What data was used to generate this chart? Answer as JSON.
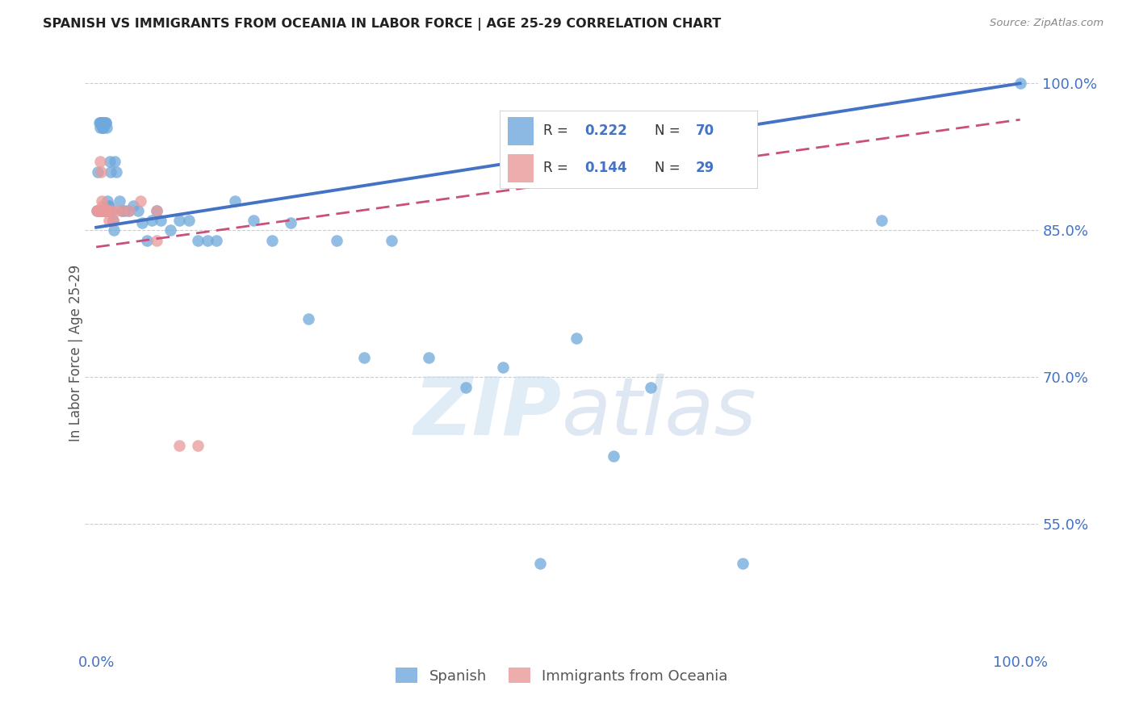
{
  "title": "SPANISH VS IMMIGRANTS FROM OCEANIA IN LABOR FORCE | AGE 25-29 CORRELATION CHART",
  "source": "Source: ZipAtlas.com",
  "ylabel": "In Labor Force | Age 25-29",
  "ytick_positions": [
    0.55,
    0.7,
    0.85,
    1.0
  ],
  "blue_color": "#6fa8dc",
  "pink_color": "#ea9999",
  "line_blue": "#4472c4",
  "line_pink": "#c9507a",
  "tick_color": "#4472c4",
  "legend_r1": "R = 0.222",
  "legend_n1": "N = 70",
  "legend_r2": "R = 0.144",
  "legend_n2": "N = 29",
  "blue_x": [
    0.001,
    0.002,
    0.003,
    0.003,
    0.004,
    0.004,
    0.005,
    0.005,
    0.006,
    0.006,
    0.007,
    0.007,
    0.007,
    0.008,
    0.008,
    0.008,
    0.009,
    0.009,
    0.01,
    0.01,
    0.01,
    0.011,
    0.011,
    0.012,
    0.012,
    0.013,
    0.013,
    0.014,
    0.015,
    0.016,
    0.017,
    0.018,
    0.019,
    0.02,
    0.022,
    0.025,
    0.028,
    0.03,
    0.035,
    0.04,
    0.045,
    0.05,
    0.055,
    0.06,
    0.065,
    0.07,
    0.08,
    0.09,
    0.1,
    0.11,
    0.12,
    0.13,
    0.15,
    0.17,
    0.19,
    0.21,
    0.23,
    0.26,
    0.29,
    0.32,
    0.36,
    0.4,
    0.44,
    0.48,
    0.52,
    0.56,
    0.6,
    0.7,
    0.85,
    1.0
  ],
  "blue_y": [
    0.87,
    0.91,
    0.87,
    0.96,
    0.955,
    0.96,
    0.96,
    0.96,
    0.96,
    0.96,
    0.955,
    0.955,
    0.96,
    0.955,
    0.96,
    0.87,
    0.96,
    0.87,
    0.96,
    0.96,
    0.87,
    0.955,
    0.87,
    0.88,
    0.87,
    0.875,
    0.87,
    0.875,
    0.92,
    0.91,
    0.87,
    0.86,
    0.85,
    0.92,
    0.91,
    0.88,
    0.87,
    0.87,
    0.87,
    0.875,
    0.87,
    0.858,
    0.84,
    0.86,
    0.87,
    0.86,
    0.85,
    0.86,
    0.86,
    0.84,
    0.84,
    0.84,
    0.88,
    0.86,
    0.84,
    0.858,
    0.76,
    0.84,
    0.72,
    0.84,
    0.72,
    0.69,
    0.71,
    0.51,
    0.74,
    0.62,
    0.69,
    0.51,
    0.86,
    1.0
  ],
  "pink_x": [
    0.001,
    0.002,
    0.003,
    0.003,
    0.004,
    0.004,
    0.005,
    0.005,
    0.006,
    0.006,
    0.007,
    0.007,
    0.008,
    0.008,
    0.009,
    0.01,
    0.011,
    0.012,
    0.014,
    0.016,
    0.018,
    0.022,
    0.028,
    0.036,
    0.048,
    0.065,
    0.065,
    0.09,
    0.11
  ],
  "pink_y": [
    0.87,
    0.87,
    0.87,
    0.87,
    0.87,
    0.92,
    0.87,
    0.91,
    0.88,
    0.87,
    0.87,
    0.875,
    0.87,
    0.87,
    0.87,
    0.87,
    0.87,
    0.87,
    0.86,
    0.87,
    0.86,
    0.87,
    0.87,
    0.87,
    0.88,
    0.87,
    0.84,
    0.63,
    0.63
  ],
  "watermark_text": "ZIP",
  "watermark_text2": "atlas",
  "background_color": "#ffffff"
}
